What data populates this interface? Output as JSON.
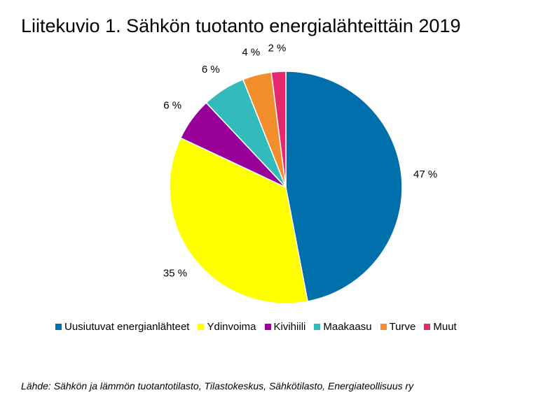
{
  "title": "Liitekuvio 1. Sähkön tuotanto energialähteittäin 2019",
  "source": "Lähde: Sähkön ja lämmön tuotantotilasto, Tilastokeskus, Sähkötilasto, Energiateollisuus ry",
  "chart_data": {
    "type": "pie",
    "title": "Liitekuvio 1. Sähkön tuotanto energialähteittäin 2019",
    "legend_position": "bottom",
    "slices": [
      {
        "name": "Uusiutuvat energianlähteet",
        "value": 47,
        "label": "47 %",
        "color": "#0070ad"
      },
      {
        "name": "Ydinvoima",
        "value": 35,
        "label": "35 %",
        "color": "#ffff00"
      },
      {
        "name": "Kivihiili",
        "value": 6,
        "label": "6 %",
        "color": "#990099"
      },
      {
        "name": "Maakaasu",
        "value": 6,
        "label": "6 %",
        "color": "#33bbbb"
      },
      {
        "name": "Turve",
        "value": 4,
        "label": "4 %",
        "color": "#f28e2b"
      },
      {
        "name": "Muut",
        "value": 2,
        "label": "2 %",
        "color": "#e6286e"
      }
    ]
  }
}
